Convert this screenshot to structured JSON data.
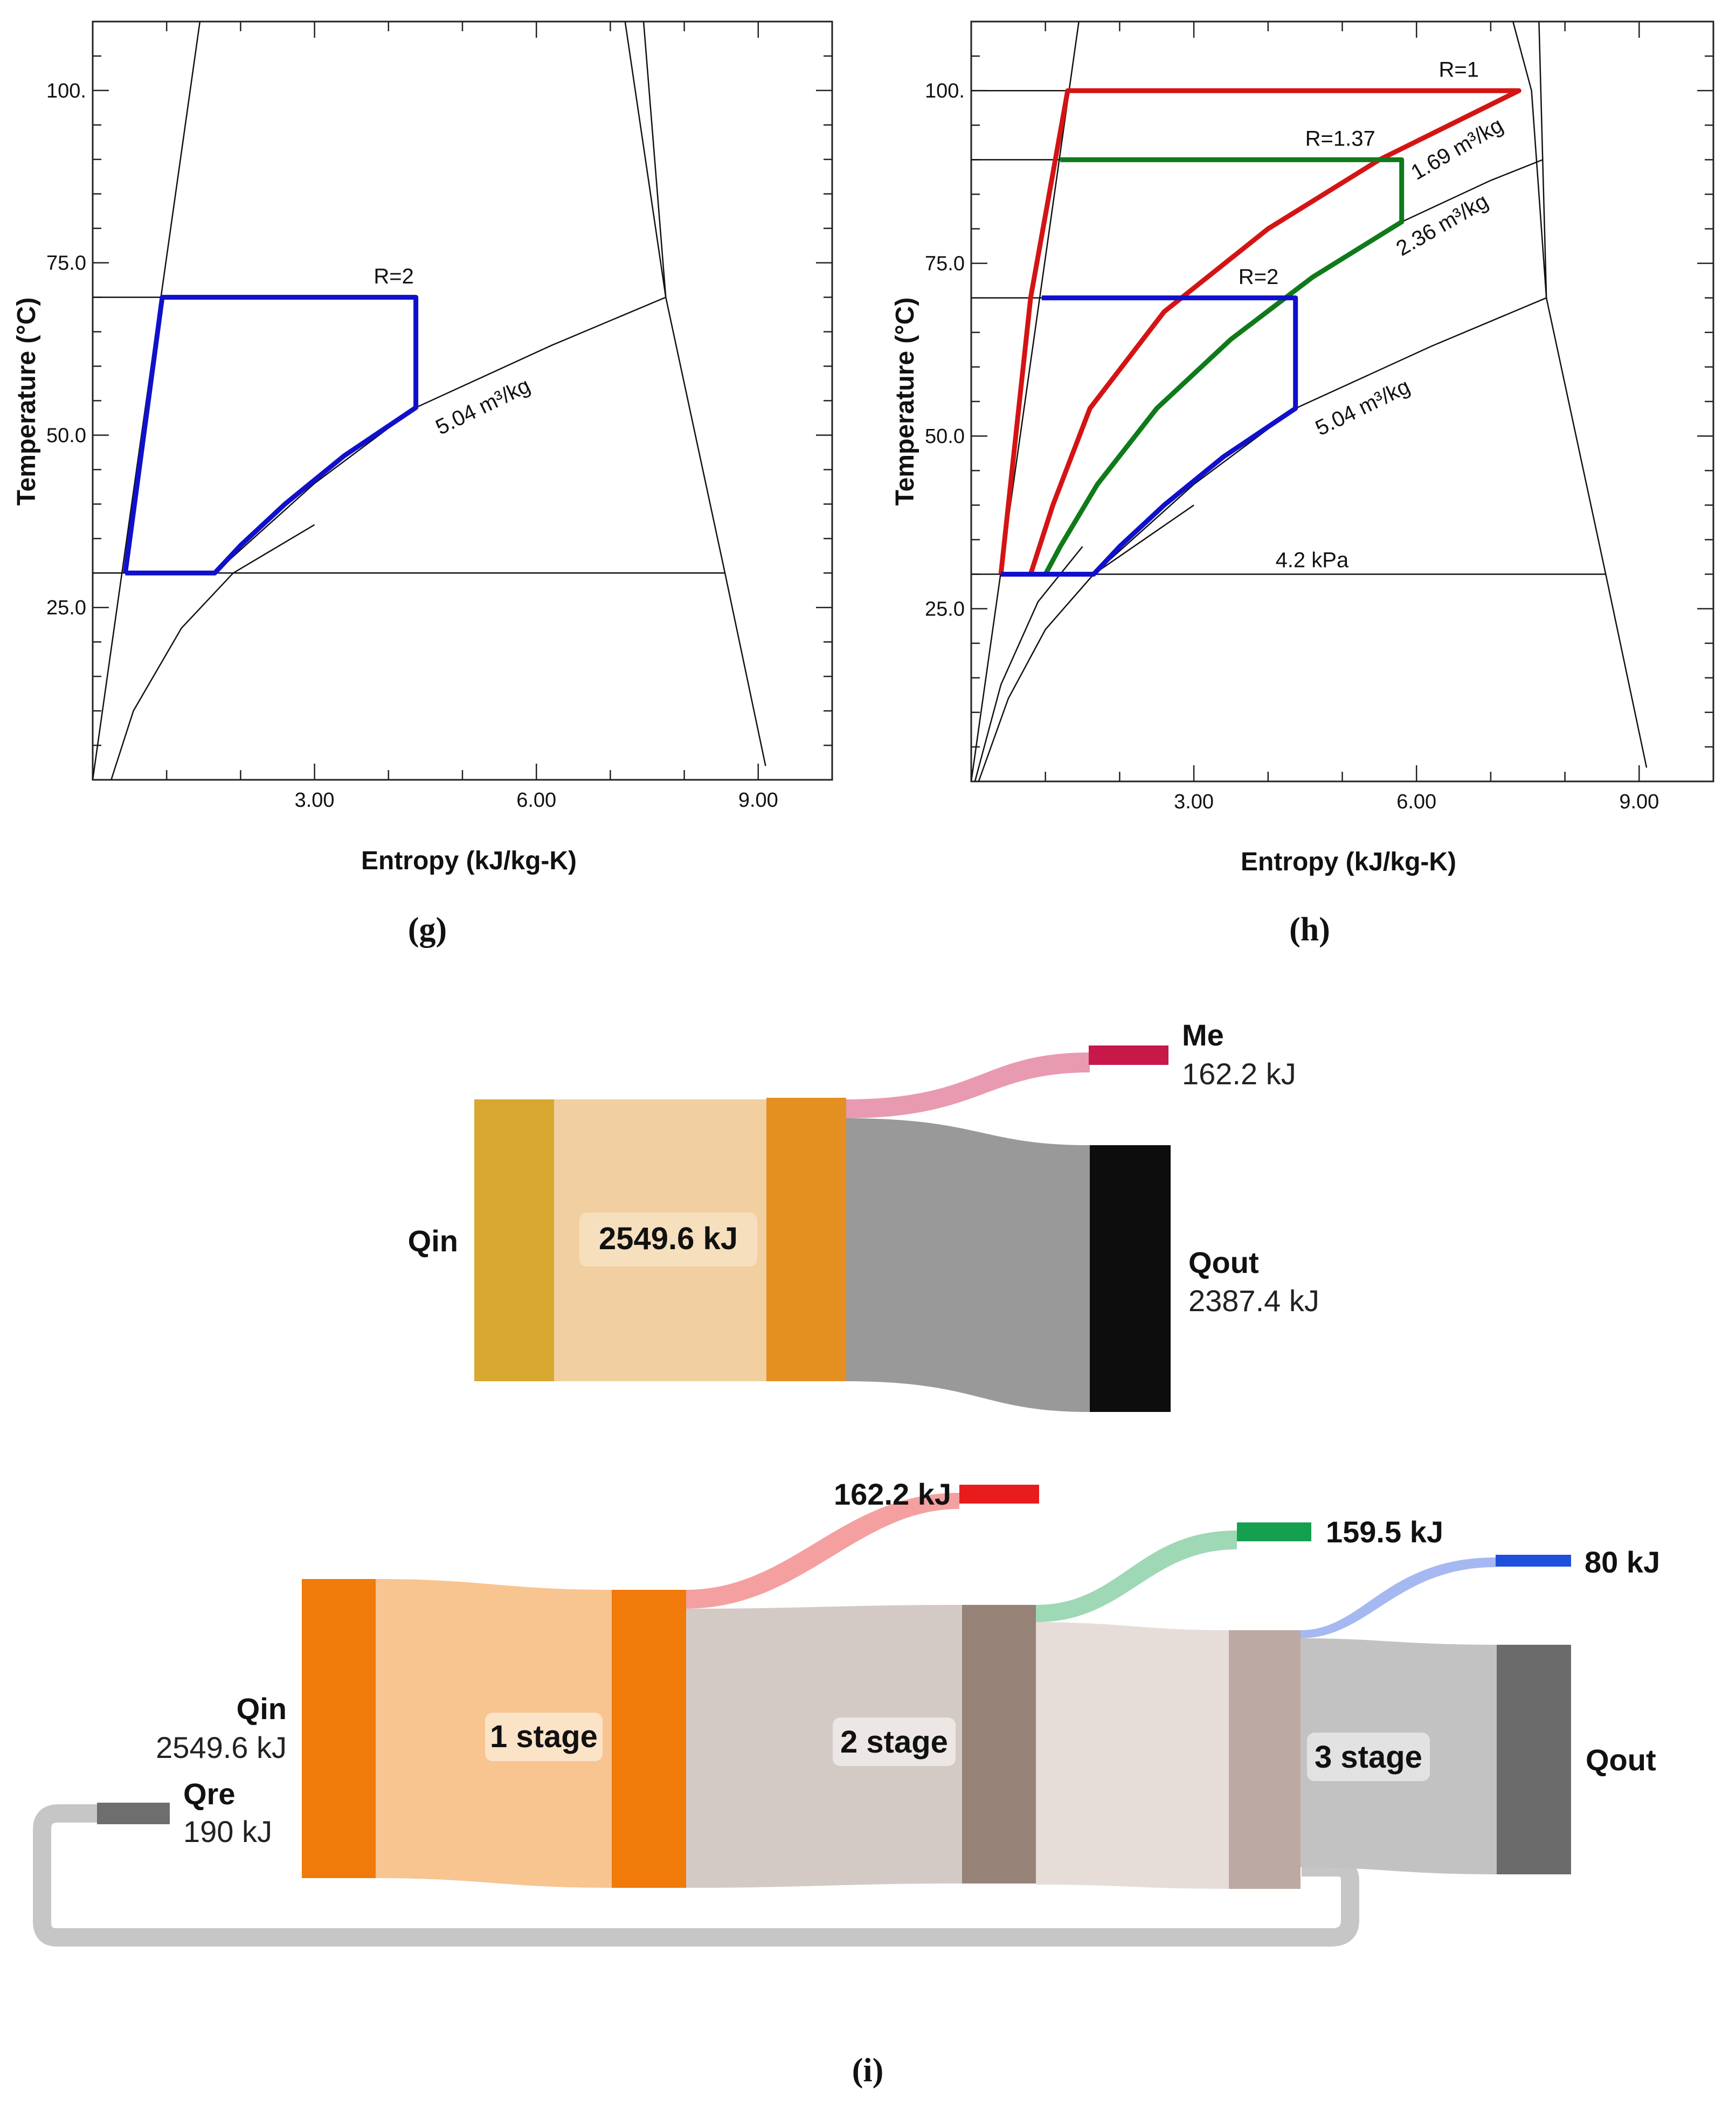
{
  "chart_data": [
    {
      "id": "g",
      "type": "line",
      "caption": "(g)",
      "title": "",
      "xlabel": "Entropy (kJ/kg-K)",
      "ylabel": "Temperature (°C)",
      "xlim": [
        0,
        10
      ],
      "ylim": [
        0,
        110
      ],
      "xticks": [
        3.0,
        6.0,
        9.0
      ],
      "xtick_labels": [
        "3.00",
        "6.00",
        "9.00"
      ],
      "yticks": [
        25.0,
        50.0,
        75.0,
        100.0
      ],
      "ytick_labels": [
        "25.0",
        "50.0",
        "75.0",
        "100."
      ],
      "annotations": [
        {
          "text": "R=2",
          "x": 3.8,
          "y": 72
        },
        {
          "text": "5.04 m³/kg",
          "x": 4.7,
          "y": 50,
          "rotate": -26
        }
      ],
      "series": [
        {
          "name": "R=2",
          "color": "#1010cc",
          "x": [
            0.44,
            0.94,
            4.37,
            4.37,
            3.4,
            2.6,
            2.0,
            1.65,
            0.44
          ],
          "y": [
            30,
            70,
            70,
            54,
            47,
            40,
            34,
            30,
            30
          ]
        }
      ],
      "reference_lines": [
        {
          "name": "liquid-line",
          "x": [
            0,
            1.45
          ],
          "y": [
            0,
            110
          ]
        },
        {
          "name": "liquid-line-2",
          "x": [
            0.25,
            0.55,
            1.2,
            1.9,
            3.0
          ],
          "y": [
            0,
            10,
            22,
            30,
            37
          ]
        },
        {
          "name": "vapor-line",
          "x": [
            7.2,
            7.75
          ],
          "y": [
            110,
            70
          ]
        },
        {
          "name": "vapor-line-2",
          "x": [
            7.45,
            7.75
          ],
          "y": [
            110,
            70
          ]
        },
        {
          "name": "vapor-line-3",
          "x": [
            7.75,
            8.55,
            9.1
          ],
          "y": [
            70,
            30,
            2
          ]
        },
        {
          "name": "isochore",
          "x": [
            1.65,
            3.0,
            4.37,
            6.2,
            7.75
          ],
          "y": [
            30,
            43,
            54,
            63,
            70
          ]
        },
        {
          "name": "isobar-70",
          "x": [
            0,
            0.94
          ],
          "y": [
            70,
            70
          ]
        },
        {
          "name": "isobar-30",
          "x": [
            0,
            8.55
          ],
          "y": [
            30,
            30
          ]
        }
      ]
    },
    {
      "id": "h",
      "type": "line",
      "caption": "(h)",
      "title": "",
      "xlabel": "Entropy (kJ/kg-K)",
      "ylabel": "Temperature (°C)",
      "xlim": [
        0,
        10
      ],
      "ylim": [
        0,
        110
      ],
      "xticks": [
        3.0,
        6.0,
        9.0
      ],
      "xtick_labels": [
        "3.00",
        "6.00",
        "9.00"
      ],
      "yticks": [
        25.0,
        50.0,
        75.0,
        100.0
      ],
      "ytick_labels": [
        "25.0",
        "50.0",
        "75.0",
        "100."
      ],
      "annotations": [
        {
          "text": "R=1",
          "x": 6.3,
          "y": 102
        },
        {
          "text": "R=1.37",
          "x": 4.5,
          "y": 92
        },
        {
          "text": "1.69 m³/kg",
          "x": 6.0,
          "y": 87,
          "rotate": -30
        },
        {
          "text": "2.36 m³/kg",
          "x": 5.8,
          "y": 76,
          "rotate": -30
        },
        {
          "text": "R=2",
          "x": 3.6,
          "y": 72
        },
        {
          "text": "5.04 m³/kg",
          "x": 4.7,
          "y": 50,
          "rotate": -26
        },
        {
          "text": "4.2 kPa",
          "x": 4.1,
          "y": 31
        }
      ],
      "series": [
        {
          "name": "R=1",
          "color": "#d41414",
          "x": [
            0.4,
            0.8,
            1.3,
            7.38,
            5.5,
            4.0,
            2.6,
            1.6,
            1.1,
            0.8,
            0.4
          ],
          "y": [
            30,
            70,
            100,
            100,
            90,
            80,
            68,
            54,
            40,
            30,
            30
          ]
        },
        {
          "name": "R=1.37",
          "color": "#0f7a1a",
          "x": [
            1.2,
            5.8,
            5.8,
            4.6,
            3.5,
            2.5,
            1.7,
            1.2,
            1.0
          ],
          "y": [
            90,
            90,
            81,
            73,
            64,
            54,
            43,
            34,
            30
          ]
        },
        {
          "name": "R=2",
          "color": "#1010cc",
          "x": [
            0.95,
            4.37,
            4.37,
            3.4,
            2.6,
            2.0,
            1.65,
            0.4
          ],
          "y": [
            70,
            70,
            54,
            47,
            40,
            34,
            30,
            30
          ]
        }
      ],
      "reference_lines": [
        {
          "name": "liquid-line",
          "x": [
            0,
            1.45
          ],
          "y": [
            0,
            110
          ]
        },
        {
          "name": "liquid-line-2",
          "x": [
            0.1,
            0.5,
            1.0,
            1.65,
            3.0
          ],
          "y": [
            0,
            12,
            22,
            30,
            40
          ]
        },
        {
          "name": "liquid-line-3",
          "x": [
            0.05,
            0.4,
            0.9,
            1.5
          ],
          "y": [
            0,
            14,
            26,
            34
          ]
        },
        {
          "name": "vapor-line",
          "x": [
            7.3,
            7.55,
            7.75
          ],
          "y": [
            110,
            100,
            70
          ]
        },
        {
          "name": "vapor-line-2",
          "x": [
            7.65,
            7.75
          ],
          "y": [
            110,
            70
          ]
        },
        {
          "name": "vapor-line-3",
          "x": [
            7.75,
            8.55,
            9.1
          ],
          "y": [
            70,
            30,
            2
          ]
        },
        {
          "name": "isochore-5.04",
          "x": [
            1.65,
            3.0,
            4.37,
            6.2,
            7.75
          ],
          "y": [
            30,
            43,
            54,
            63,
            70
          ]
        },
        {
          "name": "isochore-2.36",
          "x": [
            5.8,
            7.0,
            7.7
          ],
          "y": [
            81,
            87,
            90
          ]
        },
        {
          "name": "isobar-100",
          "x": [
            0,
            1.3
          ],
          "y": [
            100,
            100
          ]
        },
        {
          "name": "isobar-90",
          "x": [
            0,
            1.2
          ],
          "y": [
            90,
            90
          ]
        },
        {
          "name": "isobar-70",
          "x": [
            0,
            0.95
          ],
          "y": [
            70,
            70
          ]
        },
        {
          "name": "isobar-30",
          "x": [
            0,
            8.55
          ],
          "y": [
            30,
            30
          ]
        }
      ]
    },
    {
      "id": "i-top",
      "type": "sankey",
      "caption": "(i)",
      "nodes": [
        {
          "name": "Qin",
          "value_label": "",
          "color": "#d8a830"
        },
        {
          "name": "",
          "value_label": "2549.6 kJ",
          "color": "#e39020"
        },
        {
          "name": "Me",
          "value_label": "162.2 kJ",
          "color": "#c8184a"
        },
        {
          "name": "Qout",
          "value_label": "2387.4 kJ",
          "color": "#0d0d0d"
        }
      ],
      "links": [
        {
          "from": "Qin",
          "to": "mid",
          "value": 2549.6,
          "color": "#f2cfa0"
        },
        {
          "from": "mid",
          "to": "Me",
          "value": 162.2,
          "color": "#e89ab0"
        },
        {
          "from": "mid",
          "to": "Qout",
          "value": 2387.4,
          "color": "#999999"
        }
      ]
    },
    {
      "id": "i-bottom",
      "type": "sankey",
      "nodes": [
        {
          "name": "Qin",
          "value_label": "2549.6 kJ",
          "color": "#f07a0a"
        },
        {
          "name": "Qre",
          "value_label": "190 kJ",
          "color": "#6e6e6e"
        },
        {
          "name": "1 stage",
          "value_label": "",
          "color": "#f07a0a"
        },
        {
          "name": "2 stage",
          "value_label": "",
          "color": "#978277"
        },
        {
          "name": "3 stage",
          "value_label": "",
          "color": "#bda9a3"
        },
        {
          "name": "",
          "value_label": "162.2 kJ",
          "color": "#e81c1c"
        },
        {
          "name": "",
          "value_label": "159.5 kJ",
          "color": "#14a050"
        },
        {
          "name": "",
          "value_label": "80 kJ",
          "color": "#1e50dc"
        },
        {
          "name": "Qout",
          "value_label": "",
          "color": "#6b6b6b"
        }
      ]
    }
  ]
}
